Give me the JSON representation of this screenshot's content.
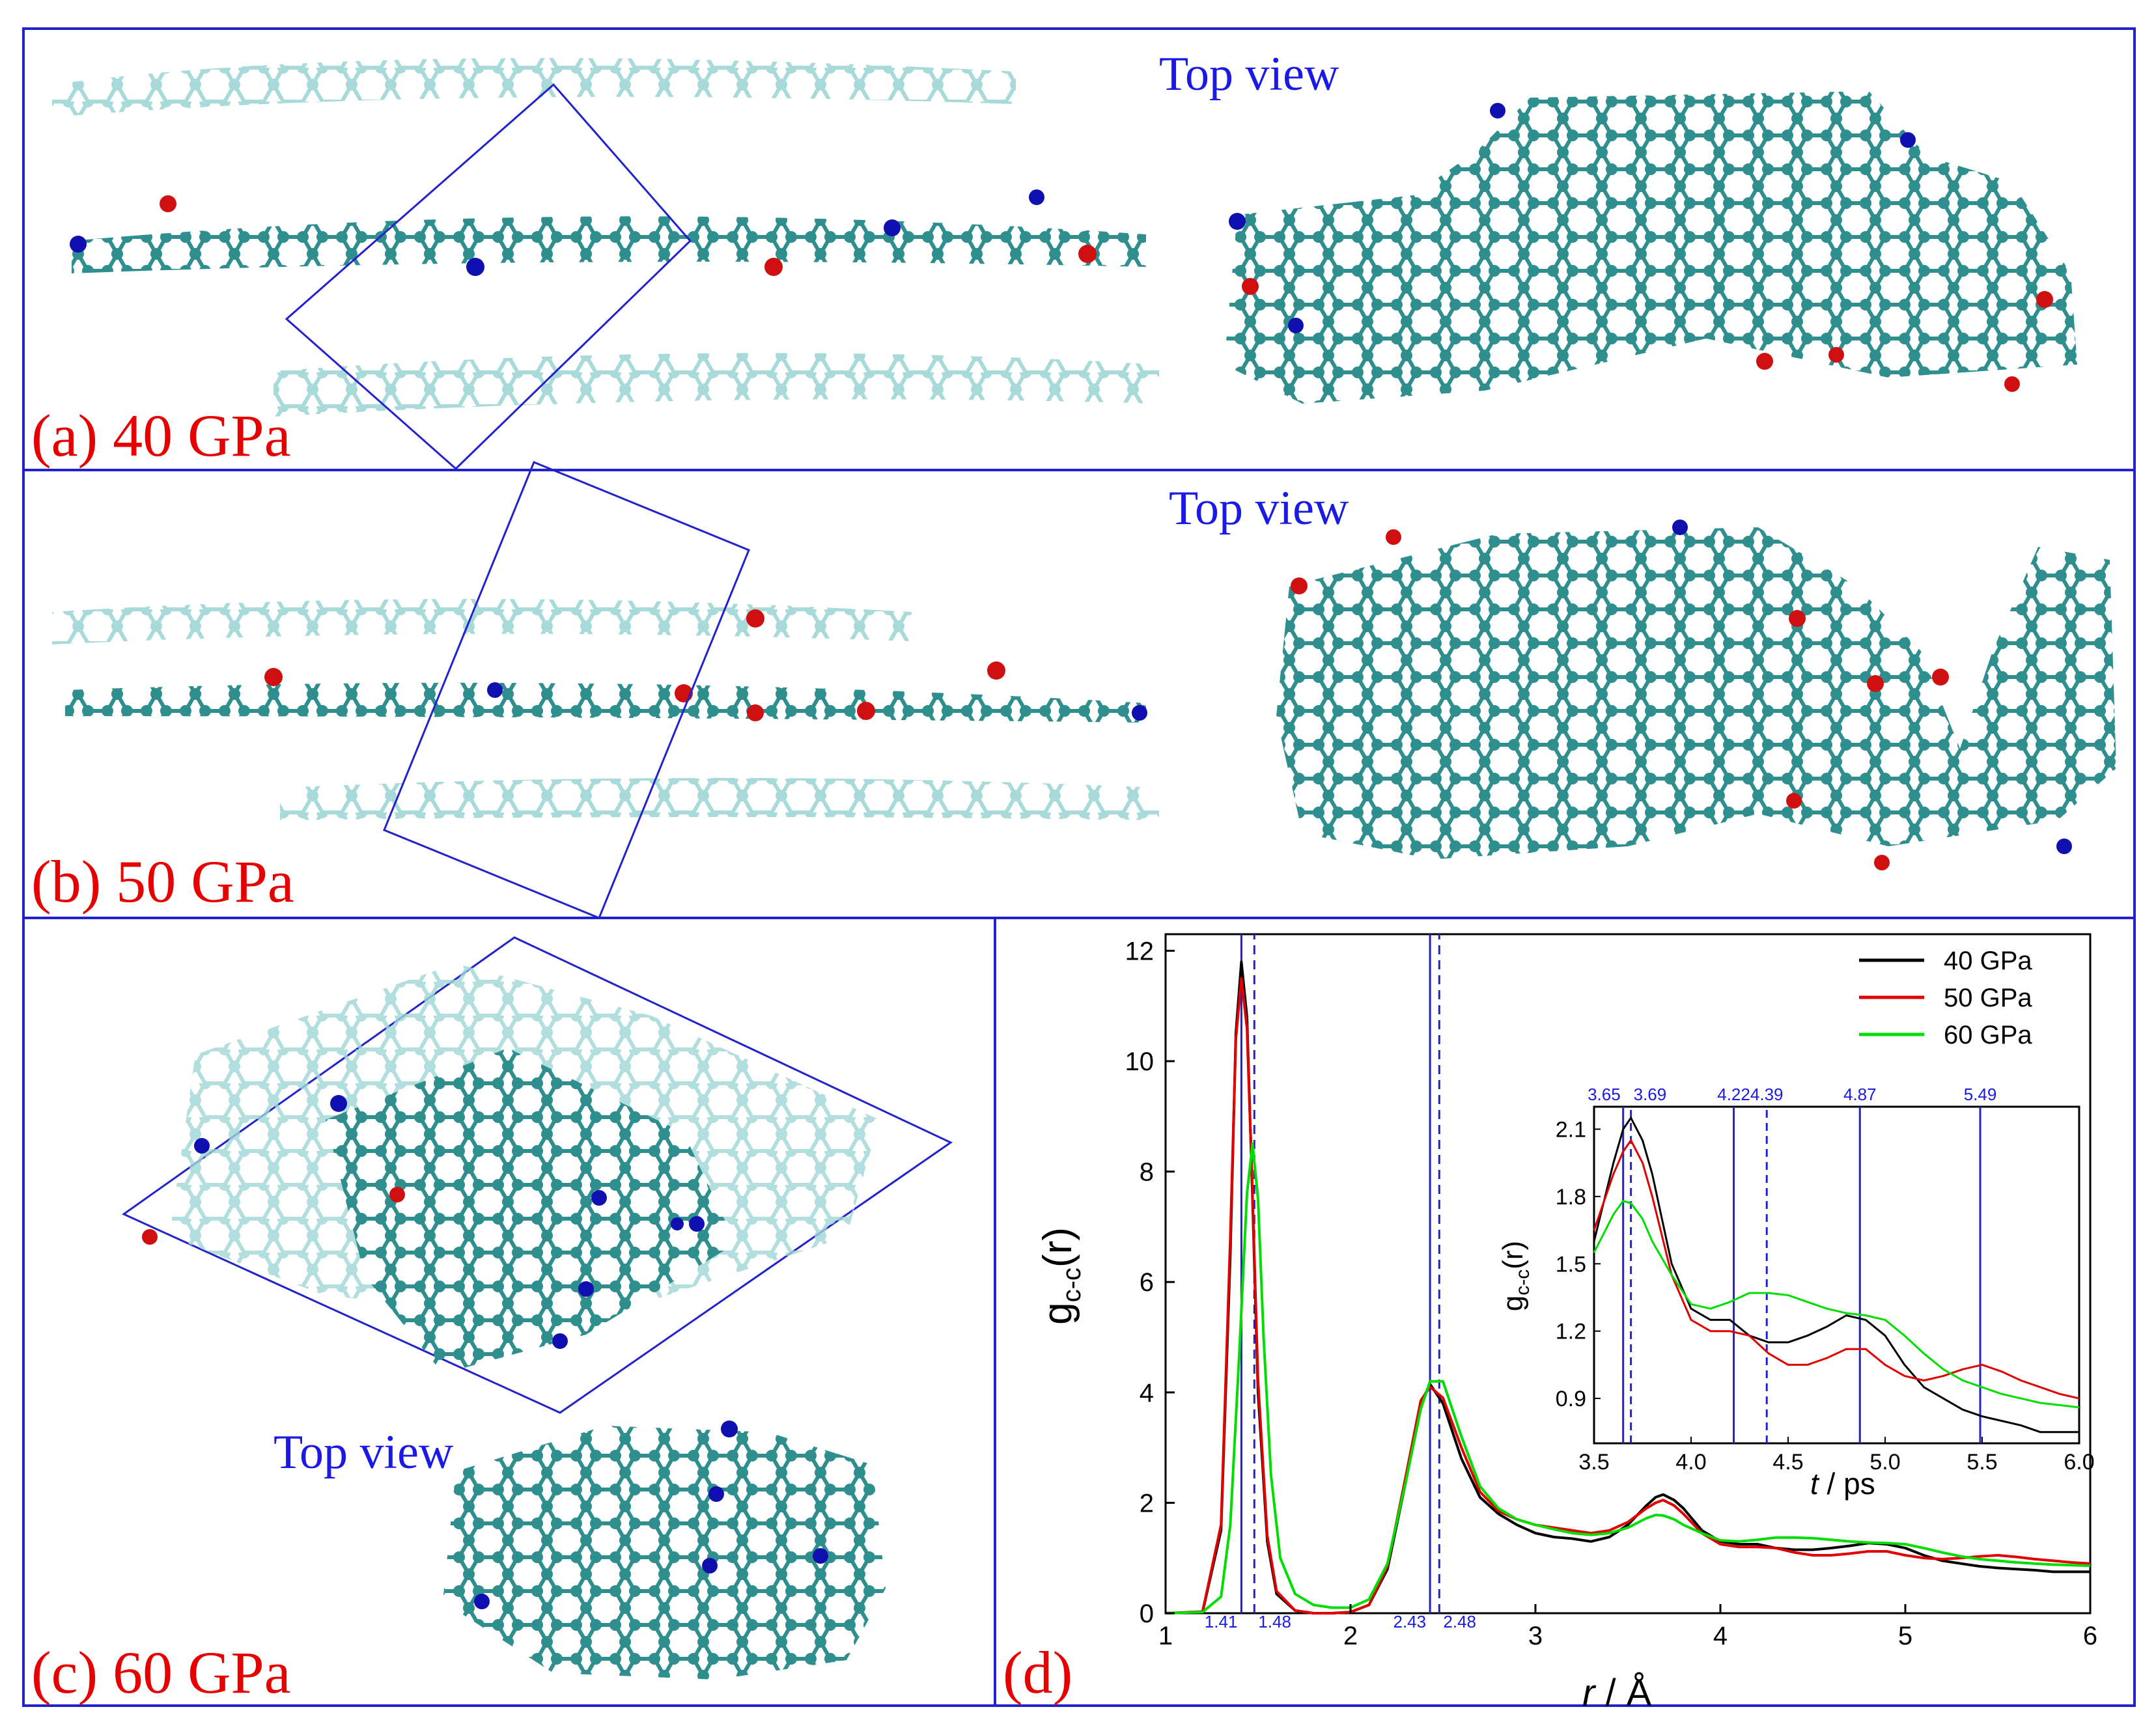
{
  "panels": {
    "a": {
      "label": "(a) 40 GPa",
      "top_view": "Top view"
    },
    "b": {
      "label": "(b) 50 GPa",
      "top_view": "Top view"
    },
    "c": {
      "label": "(c) 60 GPa",
      "top_view": "Top view"
    },
    "d": {
      "label": "(d)"
    }
  },
  "colors": {
    "frame": "#2222cc",
    "carbon": "#2f8f8f",
    "carbon_faded": "#9fd6d6",
    "nitrogen": "#1010b0",
    "oxygen": "#d01010",
    "hydrogen": "#e6e6e6",
    "label_red": "#e60000",
    "label_blue": "#1a1ae6",
    "series_40": "#000000",
    "series_50": "#e00000",
    "series_60": "#00dd00"
  },
  "chart_data": [
    {
      "type": "line",
      "name": "main",
      "xlabel_italic": "r",
      "xlabel_rest": " / Å",
      "ylabel_main": "g",
      "ylabel_sub": "c-c",
      "ylabel_tail": "(r)",
      "xlim": [
        1,
        6
      ],
      "ylim": [
        0,
        12.3
      ],
      "xticks": [
        1,
        2,
        3,
        4,
        5,
        6
      ],
      "yticks": [
        0,
        2,
        4,
        6,
        8,
        10,
        12
      ],
      "legend_position": "top-right",
      "reference_lines": [
        {
          "x": 1.41,
          "style": "solid",
          "label": "1.41"
        },
        {
          "x": 1.48,
          "style": "dashed",
          "label": "1.48"
        },
        {
          "x": 2.43,
          "style": "solid",
          "label": "2.43"
        },
        {
          "x": 2.48,
          "style": "dashed",
          "label": "2.48"
        }
      ],
      "series": [
        {
          "name": "40 GPa",
          "color": "#000000",
          "x": [
            1.0,
            1.2,
            1.3,
            1.35,
            1.38,
            1.41,
            1.44,
            1.47,
            1.5,
            1.55,
            1.6,
            1.7,
            1.8,
            1.9,
            2.0,
            2.1,
            2.2,
            2.3,
            2.38,
            2.43,
            2.5,
            2.6,
            2.7,
            2.8,
            2.9,
            3.0,
            3.1,
            3.2,
            3.3,
            3.4,
            3.5,
            3.6,
            3.65,
            3.69,
            3.75,
            3.8,
            3.9,
            4.0,
            4.1,
            4.2,
            4.3,
            4.4,
            4.5,
            4.6,
            4.7,
            4.8,
            4.9,
            5.0,
            5.1,
            5.2,
            5.3,
            5.4,
            5.5,
            5.6,
            5.7,
            5.8,
            5.9,
            6.0
          ],
          "y": [
            0,
            0.02,
            1.5,
            6.5,
            10.5,
            11.8,
            10.8,
            7.5,
            4.0,
            1.3,
            0.35,
            0.05,
            0.0,
            0.0,
            0.02,
            0.15,
            0.8,
            2.4,
            3.8,
            4.15,
            3.8,
            2.8,
            2.1,
            1.8,
            1.6,
            1.45,
            1.38,
            1.35,
            1.3,
            1.38,
            1.6,
            1.95,
            2.1,
            2.15,
            2.05,
            1.9,
            1.5,
            1.3,
            1.25,
            1.25,
            1.18,
            1.15,
            1.15,
            1.18,
            1.22,
            1.27,
            1.25,
            1.18,
            1.05,
            0.95,
            0.9,
            0.85,
            0.82,
            0.8,
            0.78,
            0.75,
            0.75,
            0.75
          ]
        },
        {
          "name": "50 GPa",
          "color": "#e00000",
          "x": [
            1.0,
            1.2,
            1.3,
            1.35,
            1.38,
            1.41,
            1.44,
            1.47,
            1.5,
            1.55,
            1.6,
            1.7,
            1.8,
            1.9,
            2.0,
            2.1,
            2.2,
            2.3,
            2.38,
            2.43,
            2.5,
            2.6,
            2.7,
            2.8,
            2.9,
            3.0,
            3.1,
            3.2,
            3.3,
            3.4,
            3.5,
            3.6,
            3.65,
            3.69,
            3.75,
            3.8,
            3.9,
            4.0,
            4.1,
            4.2,
            4.3,
            4.4,
            4.5,
            4.6,
            4.7,
            4.8,
            4.9,
            5.0,
            5.1,
            5.2,
            5.3,
            5.4,
            5.5,
            5.6,
            5.7,
            5.8,
            5.9,
            6.0
          ],
          "y": [
            0,
            0.03,
            1.6,
            6.8,
            10.4,
            11.5,
            10.6,
            7.6,
            4.2,
            1.4,
            0.4,
            0.05,
            0.0,
            0.0,
            0.02,
            0.15,
            0.85,
            2.5,
            3.85,
            4.1,
            3.9,
            3.0,
            2.2,
            1.85,
            1.7,
            1.6,
            1.55,
            1.5,
            1.45,
            1.5,
            1.65,
            1.9,
            2.0,
            2.05,
            1.95,
            1.8,
            1.45,
            1.25,
            1.2,
            1.2,
            1.18,
            1.1,
            1.05,
            1.05,
            1.08,
            1.12,
            1.12,
            1.05,
            1.0,
            0.98,
            1.0,
            1.03,
            1.05,
            1.02,
            0.98,
            0.95,
            0.92,
            0.9
          ]
        },
        {
          "name": "60 GPa",
          "color": "#00dd00",
          "x": [
            1.0,
            1.2,
            1.3,
            1.35,
            1.4,
            1.44,
            1.47,
            1.5,
            1.53,
            1.57,
            1.62,
            1.7,
            1.8,
            1.9,
            2.0,
            2.1,
            2.2,
            2.3,
            2.38,
            2.43,
            2.5,
            2.6,
            2.7,
            2.8,
            2.9,
            3.0,
            3.1,
            3.2,
            3.3,
            3.4,
            3.5,
            3.6,
            3.65,
            3.69,
            3.75,
            3.8,
            3.9,
            4.0,
            4.1,
            4.2,
            4.3,
            4.4,
            4.5,
            4.6,
            4.7,
            4.8,
            4.9,
            5.0,
            5.1,
            5.2,
            5.3,
            5.4,
            5.5,
            5.6,
            5.7,
            5.8,
            5.9,
            6.0
          ],
          "y": [
            0,
            0.02,
            0.3,
            1.6,
            4.8,
            7.6,
            8.5,
            7.5,
            5.0,
            2.5,
            1.0,
            0.35,
            0.15,
            0.1,
            0.1,
            0.25,
            0.9,
            2.4,
            3.7,
            4.2,
            4.2,
            3.2,
            2.3,
            1.9,
            1.7,
            1.6,
            1.52,
            1.45,
            1.42,
            1.45,
            1.55,
            1.72,
            1.78,
            1.77,
            1.7,
            1.6,
            1.45,
            1.32,
            1.3,
            1.33,
            1.37,
            1.37,
            1.36,
            1.33,
            1.3,
            1.28,
            1.27,
            1.25,
            1.18,
            1.1,
            1.03,
            0.98,
            0.95,
            0.92,
            0.9,
            0.88,
            0.87,
            0.86
          ]
        }
      ]
    },
    {
      "type": "line",
      "name": "inset",
      "xlabel_italic": "t",
      "xlabel_rest": " / ps",
      "ylabel_main": "g",
      "ylabel_sub": "c-c",
      "ylabel_tail": "(r)",
      "xlim": [
        3.5,
        6.0
      ],
      "ylim": [
        0.7,
        2.2
      ],
      "xticks": [
        "3.5",
        "4.0",
        "4.5",
        "5.0",
        "5.5",
        "6.0"
      ],
      "yticks": [
        "0.9",
        "1.2",
        "1.5",
        "1.8",
        "2.1"
      ],
      "reference_lines": [
        {
          "x": 3.65,
          "style": "solid",
          "label": "3.65"
        },
        {
          "x": 3.69,
          "style": "dashed",
          "label": "3.69"
        },
        {
          "x": 4.22,
          "style": "solid",
          "label": "4.22"
        },
        {
          "x": 4.39,
          "style": "dashed",
          "label": "4.39"
        },
        {
          "x": 4.87,
          "style": "solid",
          "label": "4.87"
        },
        {
          "x": 5.49,
          "style": "solid",
          "label": "5.49"
        }
      ]
    }
  ]
}
